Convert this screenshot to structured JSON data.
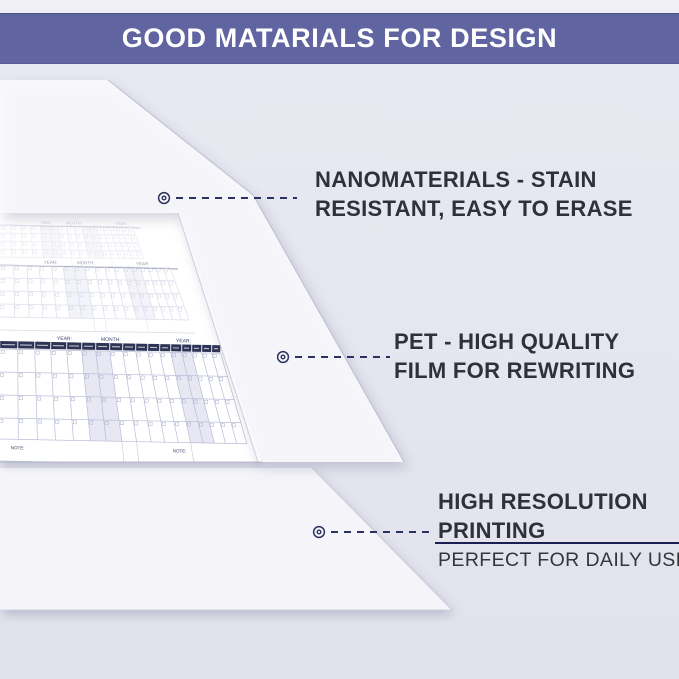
{
  "header": {
    "title": "GOOD MATARIALS FOR DESIGN"
  },
  "callouts": [
    {
      "lines": [
        "NANOMATERIALS - STAIN",
        "RESISTANT, EASY TO ERASE"
      ]
    },
    {
      "lines": [
        "PET - HIGH QUALITY",
        "FILM FOR REWRITING"
      ]
    },
    {
      "lines": [
        "HIGH RESOLUTION",
        "PRINTING"
      ],
      "subtitle": "PERFECT FOR DAILY USE"
    }
  ],
  "calendar": {
    "year_label": "YEAR:",
    "month_label": "MONTH:",
    "note_label": "NOTE:"
  },
  "colors": {
    "header_bg": "#6065a2",
    "background": "#e6e6f0",
    "callout_text": "#2f3138",
    "marker_navy": "#2b3160",
    "calendar_header_navy": "#2e3456",
    "weekend_shade": "#e3e4f1",
    "sheet_white": "#ffffff"
  }
}
